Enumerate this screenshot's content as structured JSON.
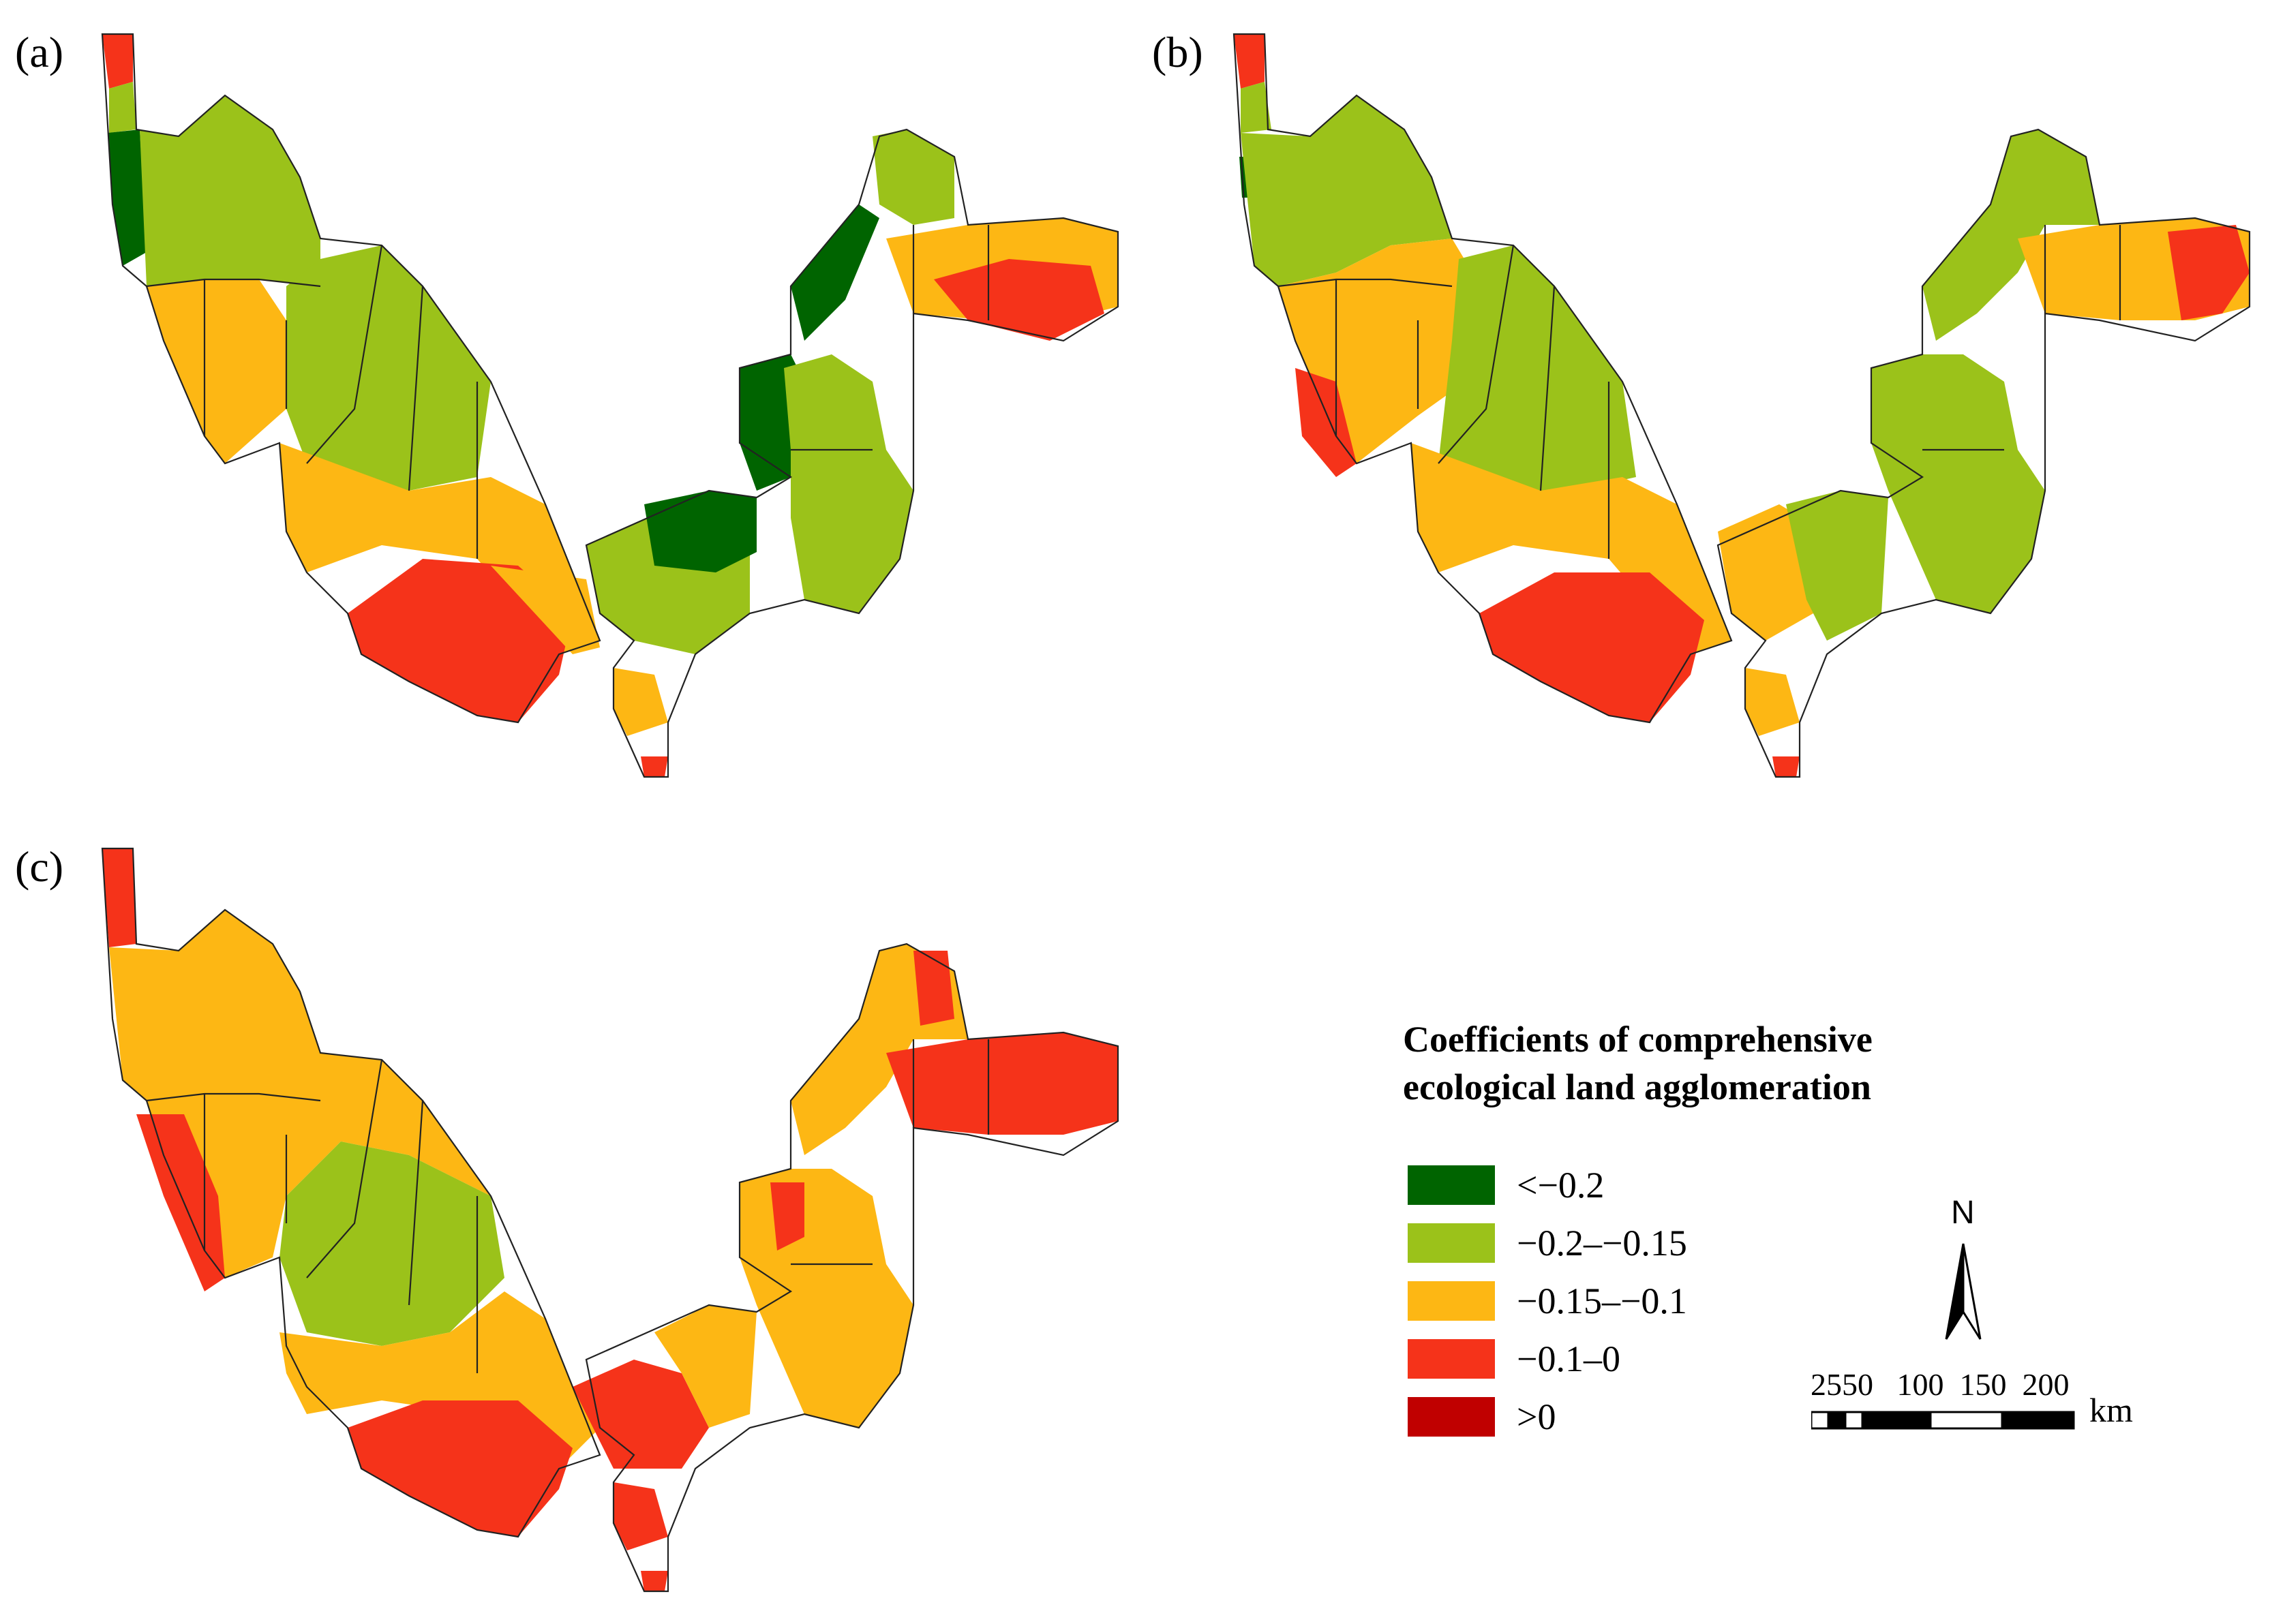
{
  "panels": [
    {
      "label": "(a)"
    },
    {
      "label": "(b)"
    },
    {
      "label": "(c)"
    }
  ],
  "legend": {
    "title": "Coefficients of comprehensive ecological land agglomeration",
    "classes": [
      {
        "label": "<−0.2",
        "color": "#006400"
      },
      {
        "label": "−0.2–−0.15",
        "color": "#9BC21A"
      },
      {
        "label": "−0.15–−0.1",
        "color": "#FDB714"
      },
      {
        "label": "−0.1–0",
        "color": "#F5331A"
      },
      {
        "label": ">0",
        "color": "#C00000"
      }
    ]
  },
  "north_arrow": {
    "letter": "N"
  },
  "scale_bar": {
    "ticks": "2550   100  150  200",
    "unit": "km"
  }
}
